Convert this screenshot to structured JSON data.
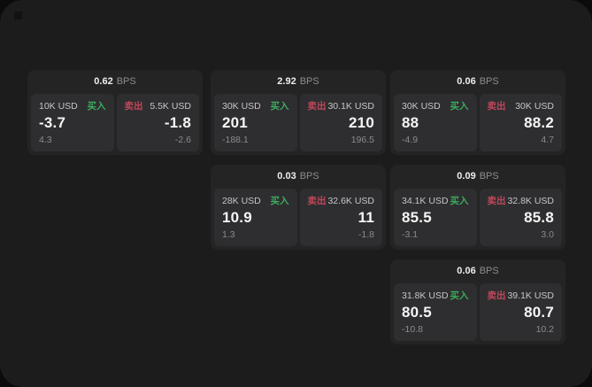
{
  "window": {
    "background": "#1c1c1d",
    "outer_background": "#0b0b0b"
  },
  "labels": {
    "bps_unit": "BPS",
    "buy": "买入",
    "sell": "卖出"
  },
  "colors": {
    "buy_accent": "#3cab5e",
    "sell_accent": "#c0475a",
    "card_background": "#242425",
    "panel_background": "#2e2e30",
    "primary_text": "#f5f5f5",
    "muted_text": "#8b8b8b"
  },
  "cards": [
    {
      "bps": "0.62",
      "buy": {
        "amount": "10K USD",
        "price": "-3.7",
        "delta": "4.3"
      },
      "sell": {
        "amount": "5.5K USD",
        "price": "-1.8",
        "delta": "-2.6"
      }
    },
    {
      "bps": "2.92",
      "buy": {
        "amount": "30K USD",
        "price": "201",
        "delta": "-188.1"
      },
      "sell": {
        "amount": "30.1K USD",
        "price": "210",
        "delta": "196.5"
      }
    },
    {
      "bps": "0.06",
      "buy": {
        "amount": "30K USD",
        "price": "88",
        "delta": "-4.9"
      },
      "sell": {
        "amount": "30K USD",
        "price": "88.2",
        "delta": "4.7"
      }
    },
    {
      "bps": "0.03",
      "buy": {
        "amount": "28K USD",
        "price": "10.9",
        "delta": "1.3"
      },
      "sell": {
        "amount": "32.6K USD",
        "price": "11",
        "delta": "-1.8"
      }
    },
    {
      "bps": "0.09",
      "buy": {
        "amount": "34.1K USD",
        "price": "85.5",
        "delta": "-3.1"
      },
      "sell": {
        "amount": "32.8K USD",
        "price": "85.8",
        "delta": "3.0"
      }
    },
    {
      "bps": "0.06",
      "buy": {
        "amount": "31.8K USD",
        "price": "80.5",
        "delta": "-10.8"
      },
      "sell": {
        "amount": "39.1K USD",
        "price": "80.7",
        "delta": "10.2"
      }
    }
  ]
}
